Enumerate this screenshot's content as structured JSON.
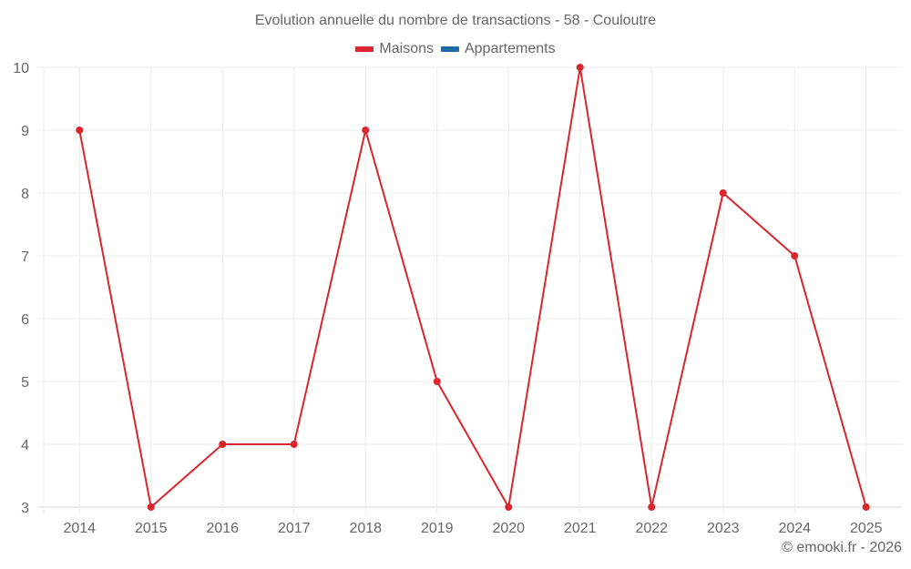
{
  "chart_data": {
    "type": "line",
    "title": "Evolution annuelle du nombre de transactions - 58 - Couloutre",
    "xlabel": "",
    "ylabel": "",
    "categories": [
      "2014",
      "2015",
      "2016",
      "2017",
      "2018",
      "2019",
      "2020",
      "2021",
      "2022",
      "2023",
      "2024",
      "2025"
    ],
    "series": [
      {
        "name": "Maisons",
        "color": "#d9262c",
        "values": [
          9,
          3,
          4,
          4,
          9,
          5,
          3,
          10,
          3,
          8,
          7,
          3
        ]
      },
      {
        "name": "Appartements",
        "color": "#1f6aa5",
        "values": []
      }
    ],
    "ylim": [
      3,
      10
    ],
    "yticks": [
      3,
      4,
      5,
      6,
      7,
      8,
      9,
      10
    ],
    "grid": true,
    "legend_position": "top"
  },
  "legend": [
    {
      "label": "Maisons",
      "color": "#d9262c"
    },
    {
      "label": "Appartements",
      "color": "#1f6aa5"
    }
  ],
  "credit": "© emooki.fr - 2026"
}
